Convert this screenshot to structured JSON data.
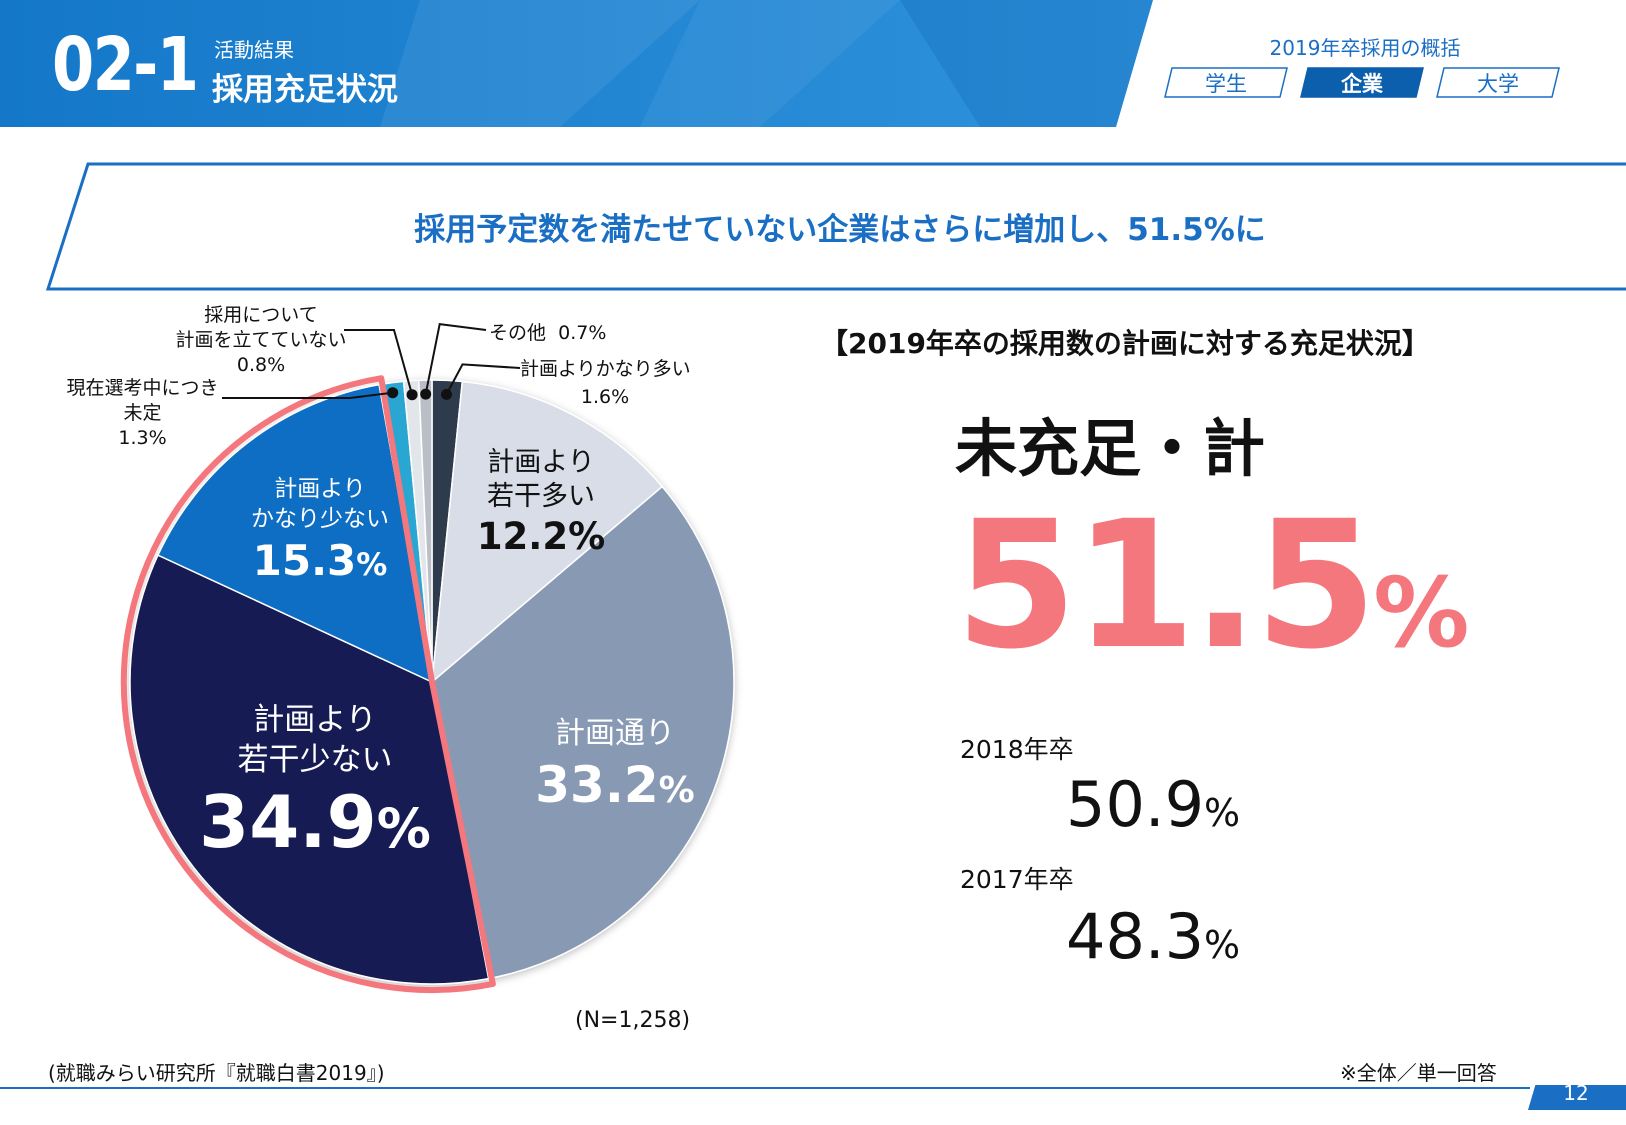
{
  "header": {
    "section_number": "02-1",
    "section_sub": "活動結果",
    "section_title": "採用充足状況",
    "summary_title": "2019年卒採用の概括",
    "tabs": [
      {
        "label": "学生",
        "active": false
      },
      {
        "label": "企業",
        "active": true
      },
      {
        "label": "大学",
        "active": false
      }
    ]
  },
  "banner": {
    "text": "採用予定数を満たせていない企業はさらに増加し、51.5%に"
  },
  "colors": {
    "brand_blue": "#1a6fc4",
    "header_blue": "#1a86d4",
    "accent_pink": "#f4777e",
    "dark_navy": "#141a52",
    "mid_blue": "#0b6ec4",
    "steel": "#8799b3",
    "pale": "#d8dde8",
    "charcoal": "#2f3a4d",
    "cyan": "#2aa6d3"
  },
  "chart_data": {
    "type": "pie",
    "title": "【2019年卒の採用数の計画に対する充足状況】",
    "sample_note": "(N=1,258)",
    "start": "12 o'clock, clockwise",
    "slices": [
      {
        "key": "much_more",
        "label": "計画よりかなり多い",
        "value": 1.6,
        "value_text": "1.6%",
        "color": "#2f3a4d"
      },
      {
        "key": "slightly_more",
        "label_line1": "計画より",
        "label_line2": "若干多い",
        "value": 12.2,
        "value_text": "12.2%",
        "color": "#d8dde8"
      },
      {
        "key": "as_planned",
        "label": "計画通り",
        "value": 33.2,
        "value_text": "33.2",
        "value_unit": "%",
        "color": "#8799b3"
      },
      {
        "key": "slightly_less",
        "label_line1": "計画より",
        "label_line2": "若干少ない",
        "value": 34.9,
        "value_text": "34.9",
        "value_unit": "%",
        "color": "#141a52"
      },
      {
        "key": "much_less",
        "label_line1": "計画より",
        "label_line2": "かなり少ない",
        "value": 15.3,
        "value_text": "15.3",
        "value_unit": "%",
        "color": "#0b6ec4"
      },
      {
        "key": "selecting",
        "label_line1": "現在選考中につき",
        "label_line2": "未定",
        "value": 1.3,
        "value_text": "1.3%",
        "color": "#2aa6d3"
      },
      {
        "key": "no_plan",
        "label_line1": "採用について",
        "label_line2": "計画を立てていない",
        "value": 0.8,
        "value_text": "0.8%",
        "color": "#e2e5ea"
      },
      {
        "key": "other",
        "label": "その他",
        "value": 0.7,
        "value_text": "0.7%",
        "color": "#b9bec7"
      }
    ],
    "highlight": {
      "keys": [
        "slightly_less",
        "much_less"
      ],
      "color": "#f4777e"
    }
  },
  "right_panel": {
    "total_label": "未充足・計",
    "total_value": "51.5",
    "total_unit": "%",
    "history": [
      {
        "label": "2018年卒",
        "value": "50.9",
        "unit": "%"
      },
      {
        "label": "2017年卒",
        "value": "48.3",
        "unit": "%"
      }
    ]
  },
  "footer": {
    "source": "(就職みらい研究所『就職白書2019』)",
    "answer_note": "※全体／単一回答",
    "page_number": "12"
  }
}
